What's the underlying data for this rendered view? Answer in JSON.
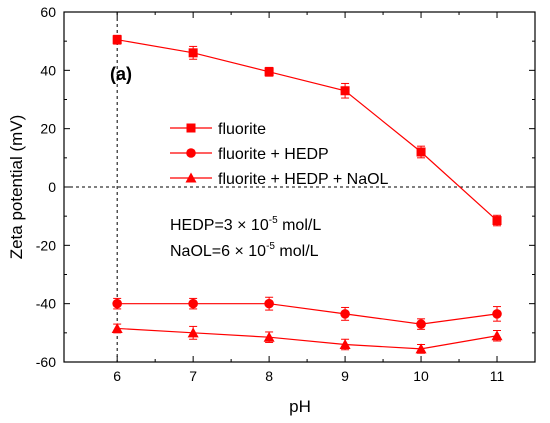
{
  "chart_data": {
    "type": "line",
    "panel_label": "(a)",
    "xlabel": "pH",
    "ylabel": "Zeta potential (mV)",
    "xlim": [
      5.3,
      11.5
    ],
    "ylim": [
      -60,
      60
    ],
    "x_ticks": [
      6,
      7,
      8,
      9,
      10,
      11
    ],
    "x_tick_labels": [
      "6",
      "7",
      "8",
      "9",
      "10",
      "11"
    ],
    "y_ticks": [
      -60,
      -40,
      -20,
      0,
      20,
      40,
      60
    ],
    "y_tick_labels": [
      "-60",
      "-40",
      "-20",
      "0",
      "20",
      "40",
      "60"
    ],
    "reference_lines": {
      "horizontal_y": 0,
      "vertical_x": 6
    },
    "series_color": "#ff0000",
    "series": [
      {
        "name": "fluorite",
        "marker": "square",
        "x": [
          6,
          7,
          8,
          9,
          10,
          11
        ],
        "y": [
          50.5,
          46,
          39.5,
          33,
          12,
          -11.5
        ],
        "error": [
          1.5,
          2.2,
          1.5,
          2.5,
          2,
          1.8
        ]
      },
      {
        "name": "fluorite + HEDP",
        "marker": "circle",
        "x": [
          6,
          7,
          8,
          9,
          10,
          11
        ],
        "y": [
          -40,
          -40,
          -40,
          -43.5,
          -47,
          -43.5
        ],
        "error": [
          1.8,
          1.8,
          2.2,
          2.2,
          1.8,
          2.5
        ]
      },
      {
        "name": "fluorite + HEDP + NaOL",
        "marker": "triangle",
        "x": [
          6,
          7,
          8,
          9,
          10,
          11
        ],
        "y": [
          -48.5,
          -50,
          -51.5,
          -54,
          -55.5,
          -51
        ],
        "error": [
          1.5,
          2.2,
          1.8,
          1.8,
          1.5,
          1.8
        ]
      }
    ],
    "annotations": [
      {
        "prefix": "HEDP=3 × 10",
        "superscript": "-5",
        "suffix": " mol/L"
      },
      {
        "prefix": "NaOL=6 × 10",
        "superscript": "-5",
        "suffix": " mol/L"
      }
    ],
    "legend_position": "center",
    "grid": false
  }
}
